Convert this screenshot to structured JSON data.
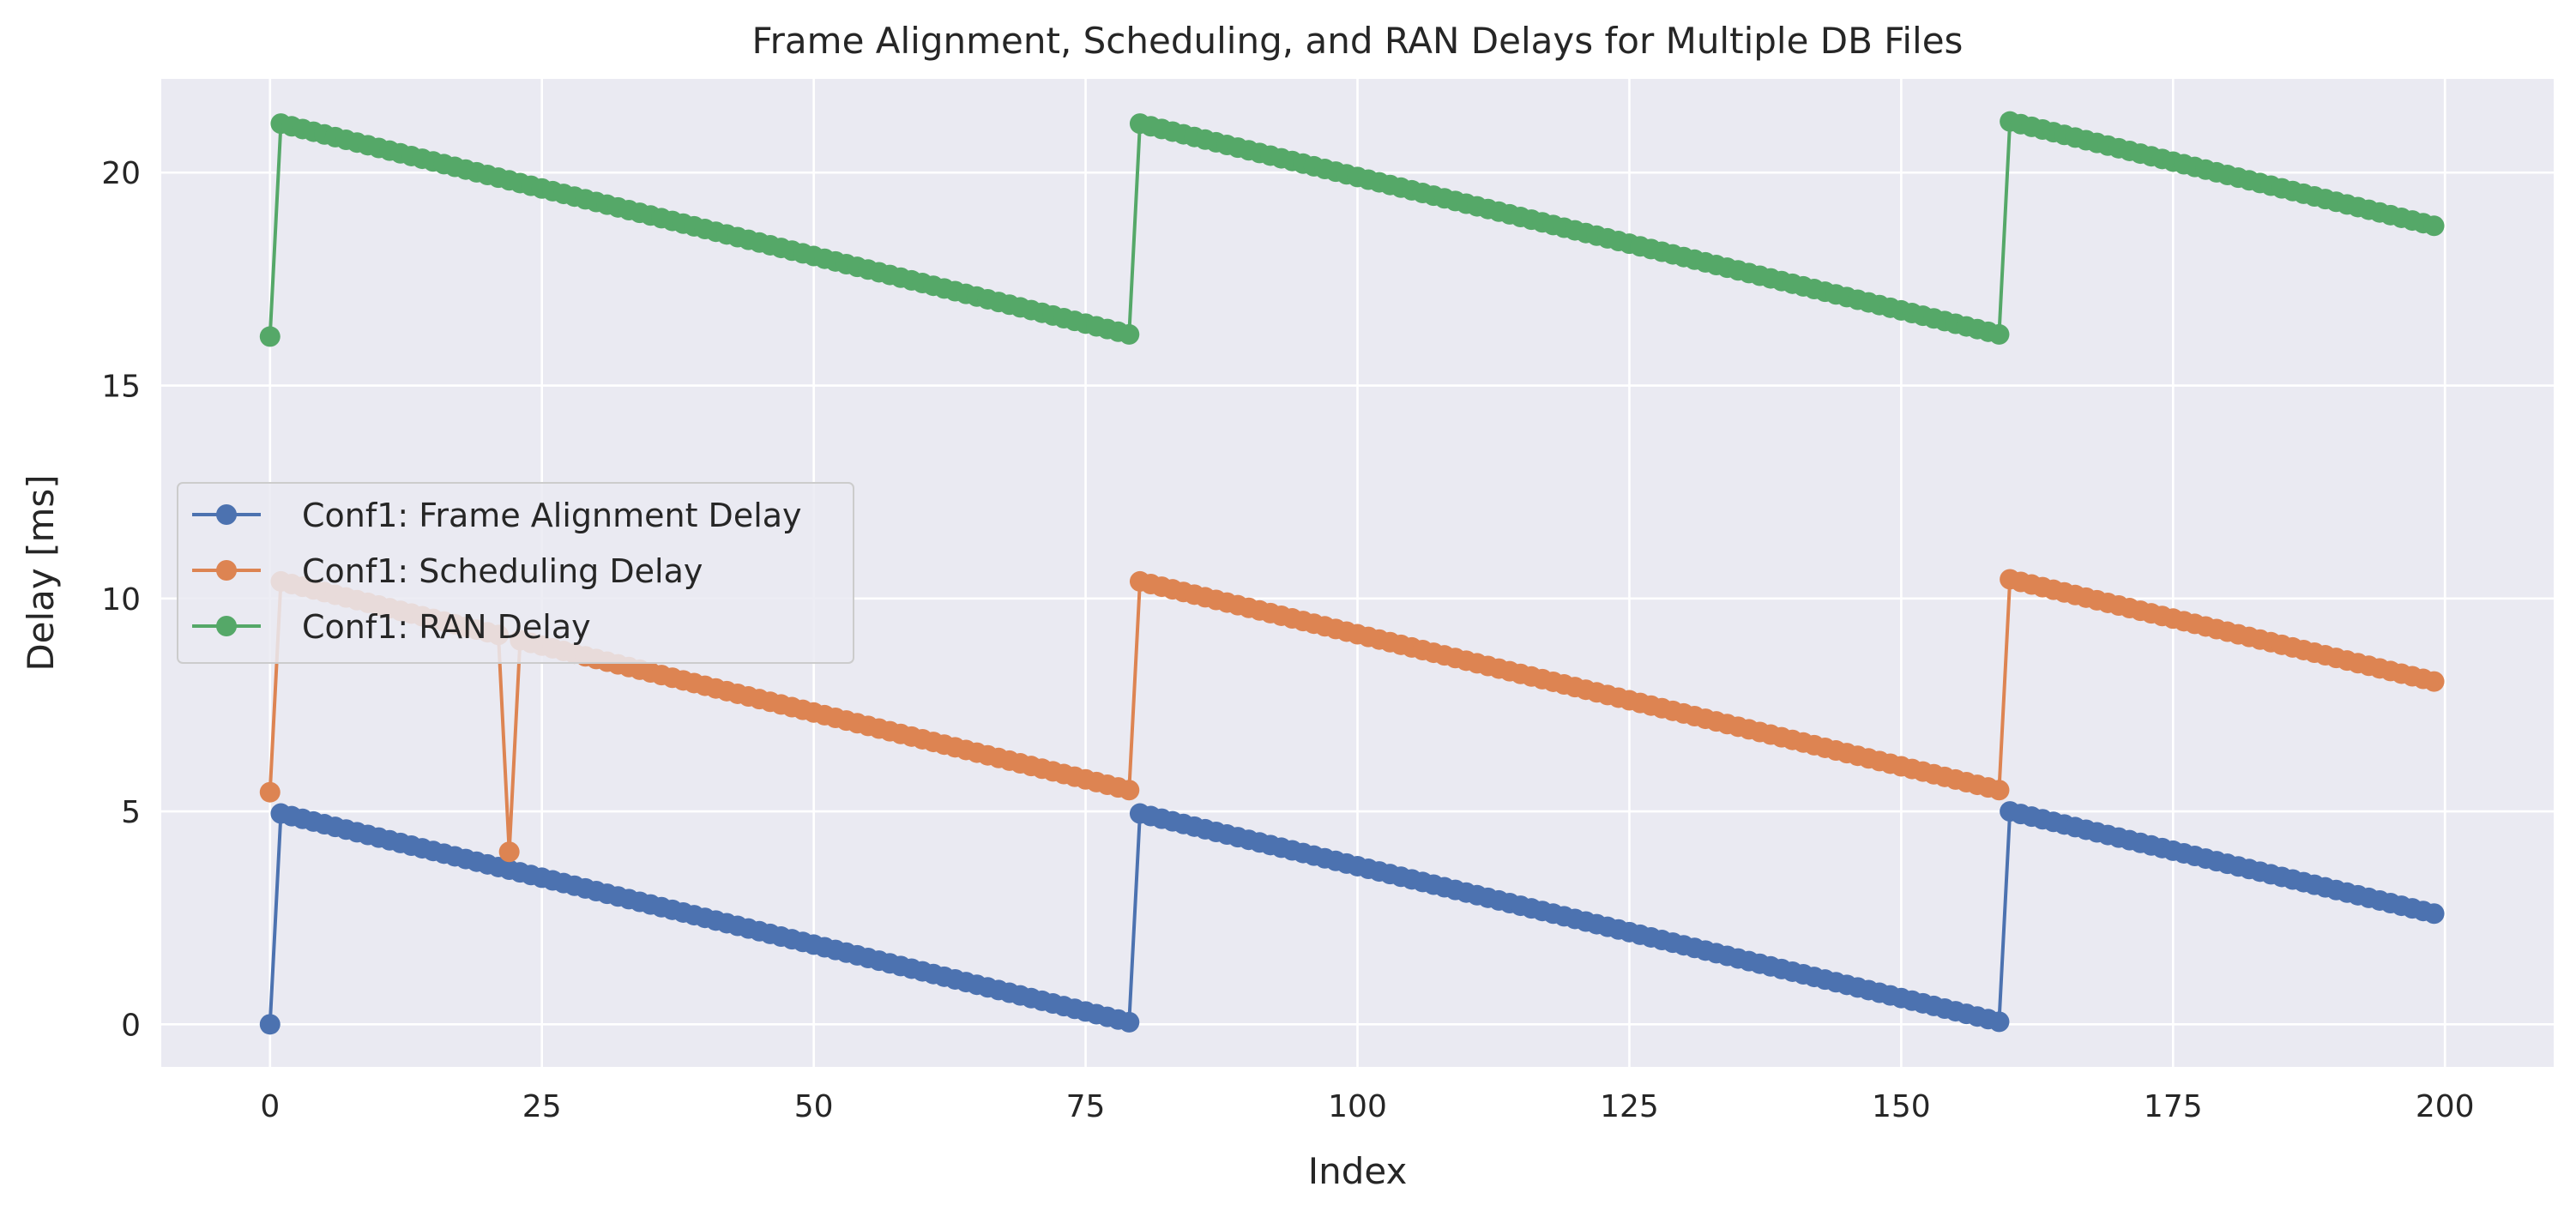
{
  "chart_data": {
    "type": "line",
    "title": "Frame Alignment, Scheduling, and RAN Delays for Multiple DB Files",
    "xlabel": "Index",
    "ylabel": "Delay [ms]",
    "xlim": [
      -10,
      210
    ],
    "ylim": [
      -1,
      22.2
    ],
    "xticks": [
      0,
      25,
      50,
      75,
      100,
      125,
      150,
      175,
      200
    ],
    "yticks": [
      0,
      5,
      10,
      15,
      20
    ],
    "grid": true,
    "background": "#eaeaf2",
    "grid_color": "#ffffff",
    "legend_position": "center-left",
    "x_count": 200,
    "series": [
      {
        "name": "Conf1: Frame Alignment Delay",
        "color": "#4c72b0",
        "segments": [
          {
            "x_start": 0,
            "x_end": 0,
            "y_start": 0.0,
            "y_end": 0.0
          },
          {
            "x_start": 1,
            "x_end": 79,
            "y_start": 4.95,
            "y_end": 0.05
          },
          {
            "x_start": 80,
            "x_end": 80,
            "y_start": 4.95,
            "y_end": 4.95
          },
          {
            "x_start": 81,
            "x_end": 159,
            "y_start": 4.89,
            "y_end": 0.06
          },
          {
            "x_start": 160,
            "x_end": 199,
            "y_start": 5.0,
            "y_end": 2.6
          }
        ],
        "overrides": []
      },
      {
        "name": "Conf1: Scheduling Delay",
        "color": "#dd8452",
        "segments": [
          {
            "x_start": 0,
            "x_end": 0,
            "y_start": 5.45,
            "y_end": 5.45
          },
          {
            "x_start": 1,
            "x_end": 79,
            "y_start": 10.4,
            "y_end": 5.5
          },
          {
            "x_start": 80,
            "x_end": 159,
            "y_start": 10.4,
            "y_end": 5.5
          },
          {
            "x_start": 160,
            "x_end": 199,
            "y_start": 10.45,
            "y_end": 8.05
          }
        ],
        "overrides": [
          {
            "x": 22,
            "y": 4.05
          }
        ]
      },
      {
        "name": "Conf1: RAN Delay",
        "color": "#55a868",
        "segments": [
          {
            "x_start": 0,
            "x_end": 0,
            "y_start": 16.15,
            "y_end": 16.15
          },
          {
            "x_start": 1,
            "x_end": 79,
            "y_start": 21.15,
            "y_end": 16.2
          },
          {
            "x_start": 80,
            "x_end": 159,
            "y_start": 21.15,
            "y_end": 16.2
          },
          {
            "x_start": 160,
            "x_end": 199,
            "y_start": 21.2,
            "y_end": 18.75
          }
        ],
        "overrides": []
      }
    ]
  }
}
